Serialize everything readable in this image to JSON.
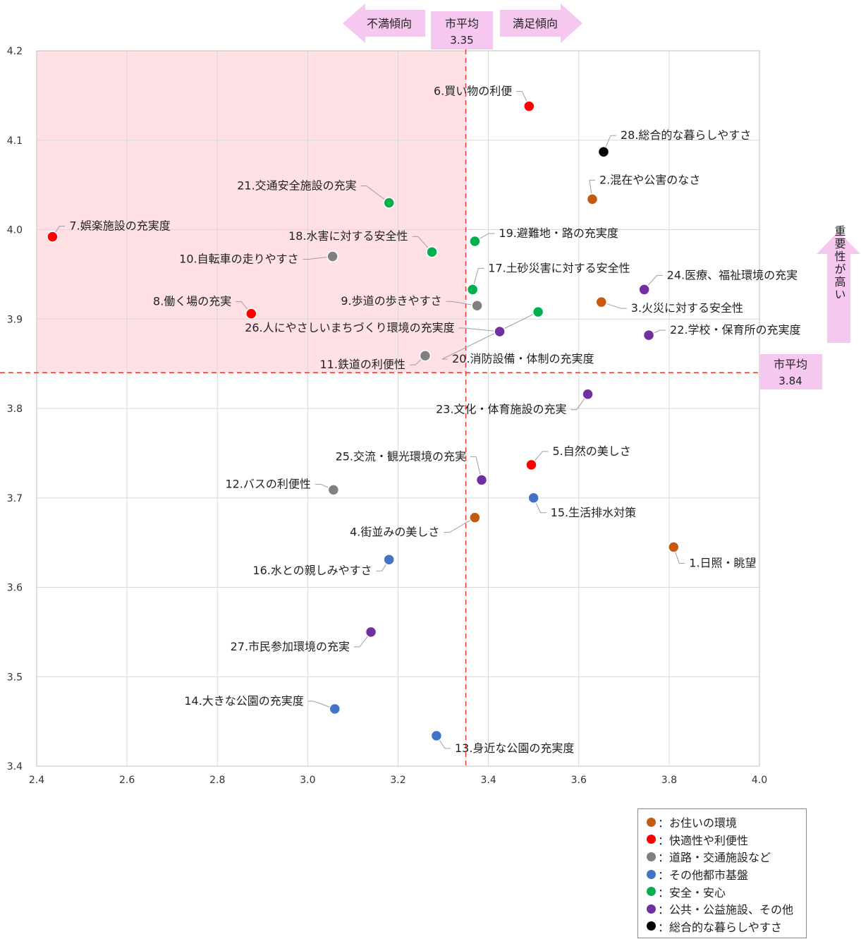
{
  "chart_data": {
    "type": "scatter",
    "title": "",
    "xlabel": "",
    "ylabel": "",
    "xlim": [
      2.4,
      4.0
    ],
    "ylim": [
      3.4,
      4.2
    ],
    "x_ticks": [
      "2.4",
      "2.6",
      "2.8",
      "3.0",
      "3.2",
      "3.4",
      "3.6",
      "3.8",
      "4.0"
    ],
    "y_ticks": [
      "3.4",
      "3.5",
      "3.6",
      "3.7",
      "3.8",
      "3.9",
      "4.0",
      "4.1",
      "4.2"
    ],
    "grid": true,
    "city_average_x": {
      "value": 3.35,
      "label_line1": "市平均",
      "label_line2": "3.35"
    },
    "city_average_y": {
      "value": 3.84,
      "label_line1": "市平均",
      "label_line2": "3.84"
    },
    "arrow_left_label": "不満傾向",
    "arrow_right_label": "満足傾向",
    "arrow_up_label": "重要性が高い",
    "highlight_quadrant": "top-left",
    "legend_position": "bottom-right",
    "categories": [
      {
        "name": "お住いの環境",
        "color": "#c55a11"
      },
      {
        "name": "快適性や利便性",
        "color": "#ff0000"
      },
      {
        "name": "道路・交通施設など",
        "color": "#808080"
      },
      {
        "name": "その他都市基盤",
        "color": "#4472c4"
      },
      {
        "name": "安全・安心",
        "color": "#00b050"
      },
      {
        "name": "公共・公益施設、その他",
        "color": "#7030a0"
      },
      {
        "name": "総合的な暮らしやすさ",
        "color": "#000000"
      }
    ],
    "points": [
      {
        "label": "1.日照・眺望",
        "x": 3.81,
        "y": 3.645,
        "cat": 0
      },
      {
        "label": "2.混在や公害のなさ",
        "x": 3.63,
        "y": 4.034,
        "cat": 0
      },
      {
        "label": "3.火災に対する安全性",
        "x": 3.65,
        "y": 3.919,
        "cat": 0
      },
      {
        "label": "4.街並みの美しさ",
        "x": 3.37,
        "y": 3.678,
        "cat": 0
      },
      {
        "label": "5.自然の美しさ",
        "x": 3.495,
        "y": 3.737,
        "cat": 1
      },
      {
        "label": "6.買い物の利便",
        "x": 3.49,
        "y": 4.138,
        "cat": 1
      },
      {
        "label": "7.娯楽施設の充実度",
        "x": 2.435,
        "y": 3.992,
        "cat": 1
      },
      {
        "label": "8.働く場の充実",
        "x": 2.875,
        "y": 3.906,
        "cat": 1
      },
      {
        "label": "9.歩道の歩きやすさ",
        "x": 3.375,
        "y": 3.915,
        "cat": 2
      },
      {
        "label": "10.自転車の走りやすさ",
        "x": 3.055,
        "y": 3.97,
        "cat": 2
      },
      {
        "label": "11.鉄道の利便性",
        "x": 3.26,
        "y": 3.859,
        "cat": 2
      },
      {
        "label": "12.バスの利便性",
        "x": 3.057,
        "y": 3.709,
        "cat": 2
      },
      {
        "label": "13.身近な公園の充実度",
        "x": 3.285,
        "y": 3.434,
        "cat": 3
      },
      {
        "label": "14.大きな公園の充実度",
        "x": 3.06,
        "y": 3.464,
        "cat": 3
      },
      {
        "label": "15.生活排水対策",
        "x": 3.5,
        "y": 3.7,
        "cat": 3
      },
      {
        "label": "16.水との親しみやすさ",
        "x": 3.18,
        "y": 3.631,
        "cat": 3
      },
      {
        "label": "17.土砂災害に対する安全性",
        "x": 3.365,
        "y": 3.933,
        "cat": 4
      },
      {
        "label": "18.水害に対する安全性",
        "x": 3.275,
        "y": 3.975,
        "cat": 4
      },
      {
        "label": "19.避難地・路の充実度",
        "x": 3.37,
        "y": 3.987,
        "cat": 4
      },
      {
        "label": "20.消防設備・体制の充実度",
        "x": 3.51,
        "y": 3.908,
        "cat": 4
      },
      {
        "label": "21.交通安全施設の充実",
        "x": 3.18,
        "y": 4.03,
        "cat": 4
      },
      {
        "label": "22.学校・保育所の充実度",
        "x": 3.755,
        "y": 3.882,
        "cat": 5
      },
      {
        "label": "23.文化・体育施設の充実",
        "x": 3.62,
        "y": 3.816,
        "cat": 5
      },
      {
        "label": "24.医療、福祉環境の充実",
        "x": 3.745,
        "y": 3.933,
        "cat": 5
      },
      {
        "label": "25.交流・観光環境の充実",
        "x": 3.385,
        "y": 3.72,
        "cat": 5
      },
      {
        "label": "26.人にやさしいまちづくり環境の充実度",
        "x": 3.425,
        "y": 3.886,
        "cat": 5
      },
      {
        "label": "27.市民参加環境の充実",
        "x": 3.14,
        "y": 3.55,
        "cat": 5
      },
      {
        "label": "28.総合的な暮らしやすさ",
        "x": 3.655,
        "y": 4.087,
        "cat": 6
      }
    ]
  }
}
